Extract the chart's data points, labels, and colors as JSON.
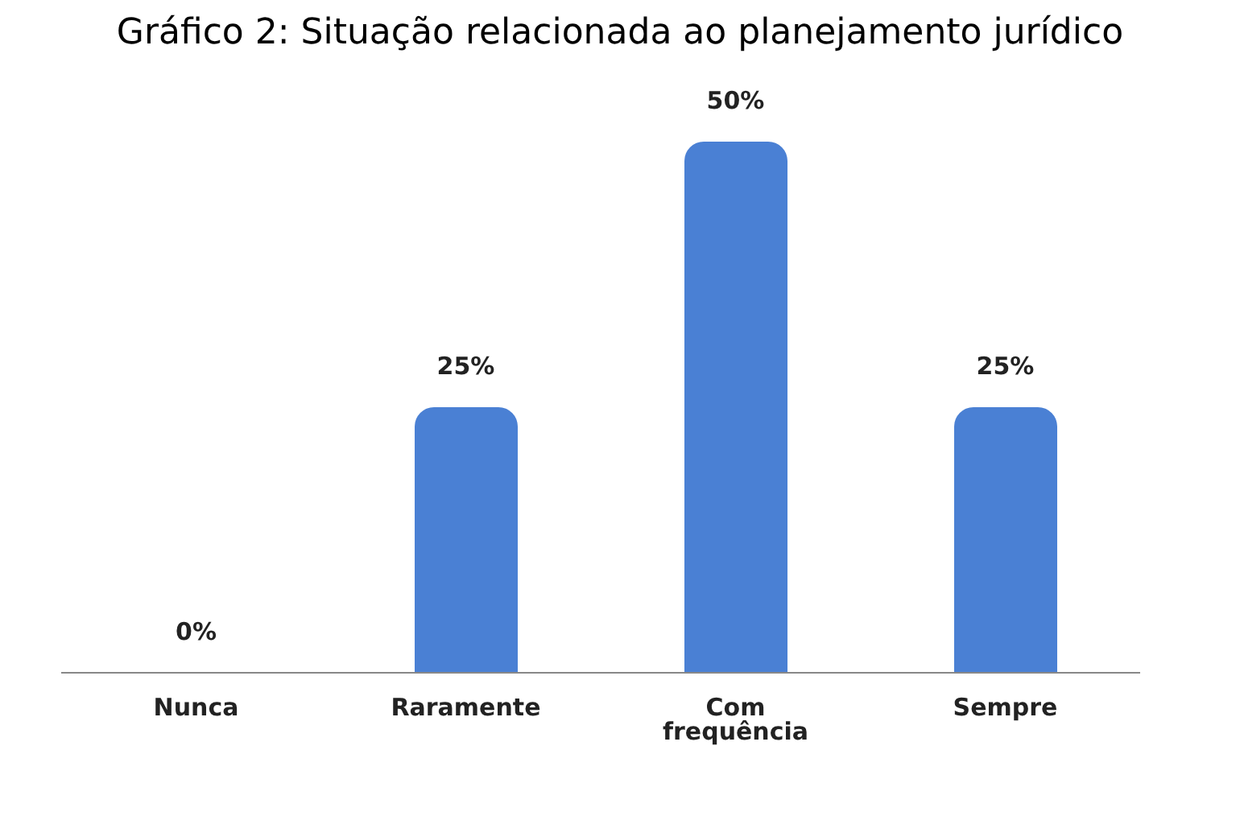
{
  "chart_data": {
    "type": "bar",
    "title": "Gráfico 2: Situação relacionada ao planejamento jurídico",
    "categories": [
      "Nunca",
      "Raramente",
      "Com frequência",
      "Sempre"
    ],
    "values": [
      0,
      25,
      50,
      25
    ],
    "value_labels": [
      "0%",
      "25%",
      "50%",
      "25%"
    ],
    "color": "#4a80d4"
  }
}
